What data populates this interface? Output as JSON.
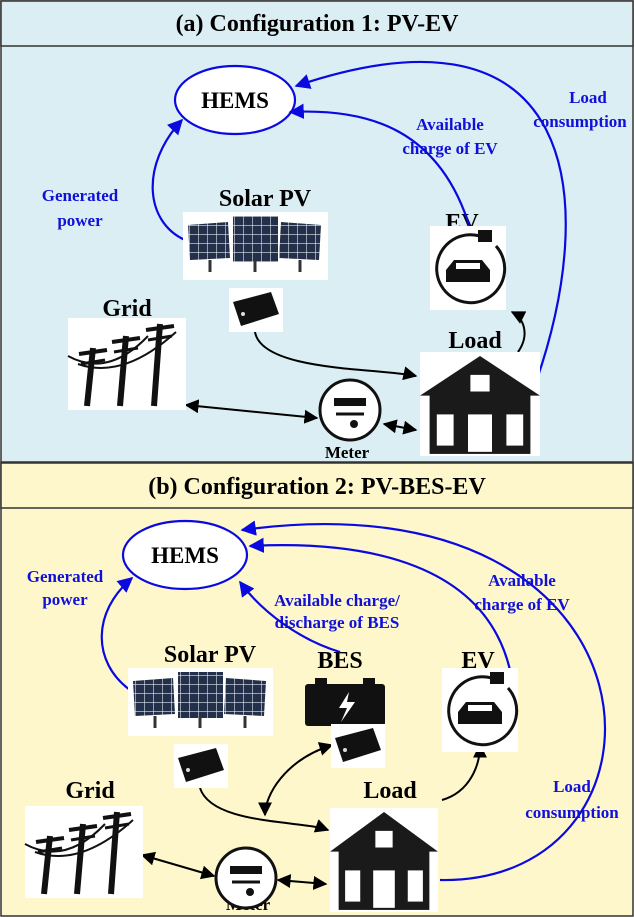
{
  "panels": [
    {
      "title": "(a) Configuration 1: PV-EV",
      "hems": "HEMS",
      "solar_pv": "Solar PV",
      "ev": "EV",
      "grid": "Grid",
      "load": "Load",
      "meter": "Meter",
      "generated_power": [
        "Generated",
        "power"
      ],
      "available_ev": [
        "Available",
        "charge of EV"
      ],
      "load_consumption": [
        "Load",
        "consumption"
      ]
    },
    {
      "title": "(b) Configuration 2: PV-BES-EV",
      "hems": "HEMS",
      "solar_pv": "Solar PV",
      "bes": "BES",
      "ev": "EV",
      "grid": "Grid",
      "load": "Load",
      "meter": "Meter",
      "generated_power": [
        "Generated",
        "power"
      ],
      "available_bes": [
        "Available charge/",
        "discharge of BES"
      ],
      "available_ev": [
        "Available",
        "charge of EV"
      ],
      "load_consumption": [
        "Load",
        "consumption"
      ]
    }
  ]
}
